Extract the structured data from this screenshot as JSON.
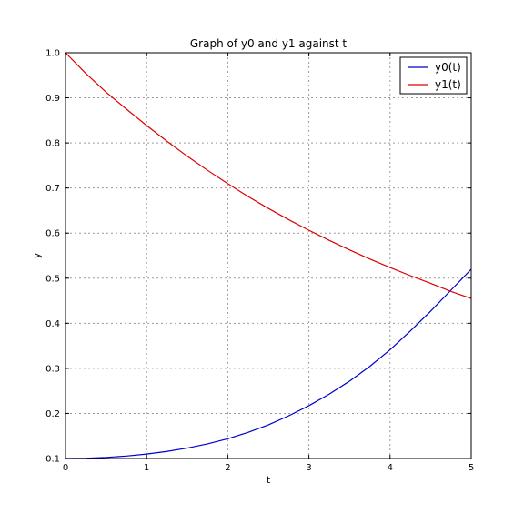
{
  "chart_data": {
    "type": "line",
    "title": "Graph of y0 and y1 against t",
    "xlabel": "t",
    "ylabel": "y",
    "xlim": [
      0,
      5
    ],
    "ylim": [
      0.1,
      1.0
    ],
    "xticks": [
      "0",
      "1",
      "2",
      "3",
      "4",
      "5"
    ],
    "yticks": [
      "0.1",
      "0.2",
      "0.3",
      "0.4",
      "0.5",
      "0.6",
      "0.7",
      "0.8",
      "0.9",
      "1.0"
    ],
    "grid": true,
    "legend_position": "top-right",
    "series": [
      {
        "name": "y0(t)",
        "color": "#0000cc",
        "x": [
          0,
          0.25,
          0.5,
          0.75,
          1,
          1.25,
          1.5,
          1.75,
          2,
          2.25,
          2.5,
          2.75,
          3,
          3.25,
          3.5,
          3.75,
          4,
          4.25,
          4.5,
          4.75,
          5
        ],
        "y": [
          0.1,
          0.1006,
          0.1024,
          0.1054,
          0.1098,
          0.1156,
          0.1231,
          0.1324,
          0.1438,
          0.1578,
          0.1746,
          0.1946,
          0.2172,
          0.2427,
          0.2716,
          0.3043,
          0.3412,
          0.3829,
          0.4267,
          0.4733,
          0.52
        ]
      },
      {
        "name": "y1(t)",
        "color": "#dd0000",
        "x": [
          0,
          0.25,
          0.5,
          0.75,
          1,
          1.25,
          1.5,
          1.75,
          2,
          2.25,
          2.5,
          2.75,
          3,
          3.25,
          3.5,
          3.75,
          4,
          4.25,
          4.5,
          4.75,
          5
        ],
        "y": [
          1.0,
          0.9542,
          0.9126,
          0.8751,
          0.8386,
          0.8037,
          0.7706,
          0.7393,
          0.7096,
          0.6811,
          0.6548,
          0.6299,
          0.6063,
          0.5839,
          0.5627,
          0.5426,
          0.5236,
          0.5056,
          0.4886,
          0.4706,
          0.455
        ]
      }
    ]
  }
}
